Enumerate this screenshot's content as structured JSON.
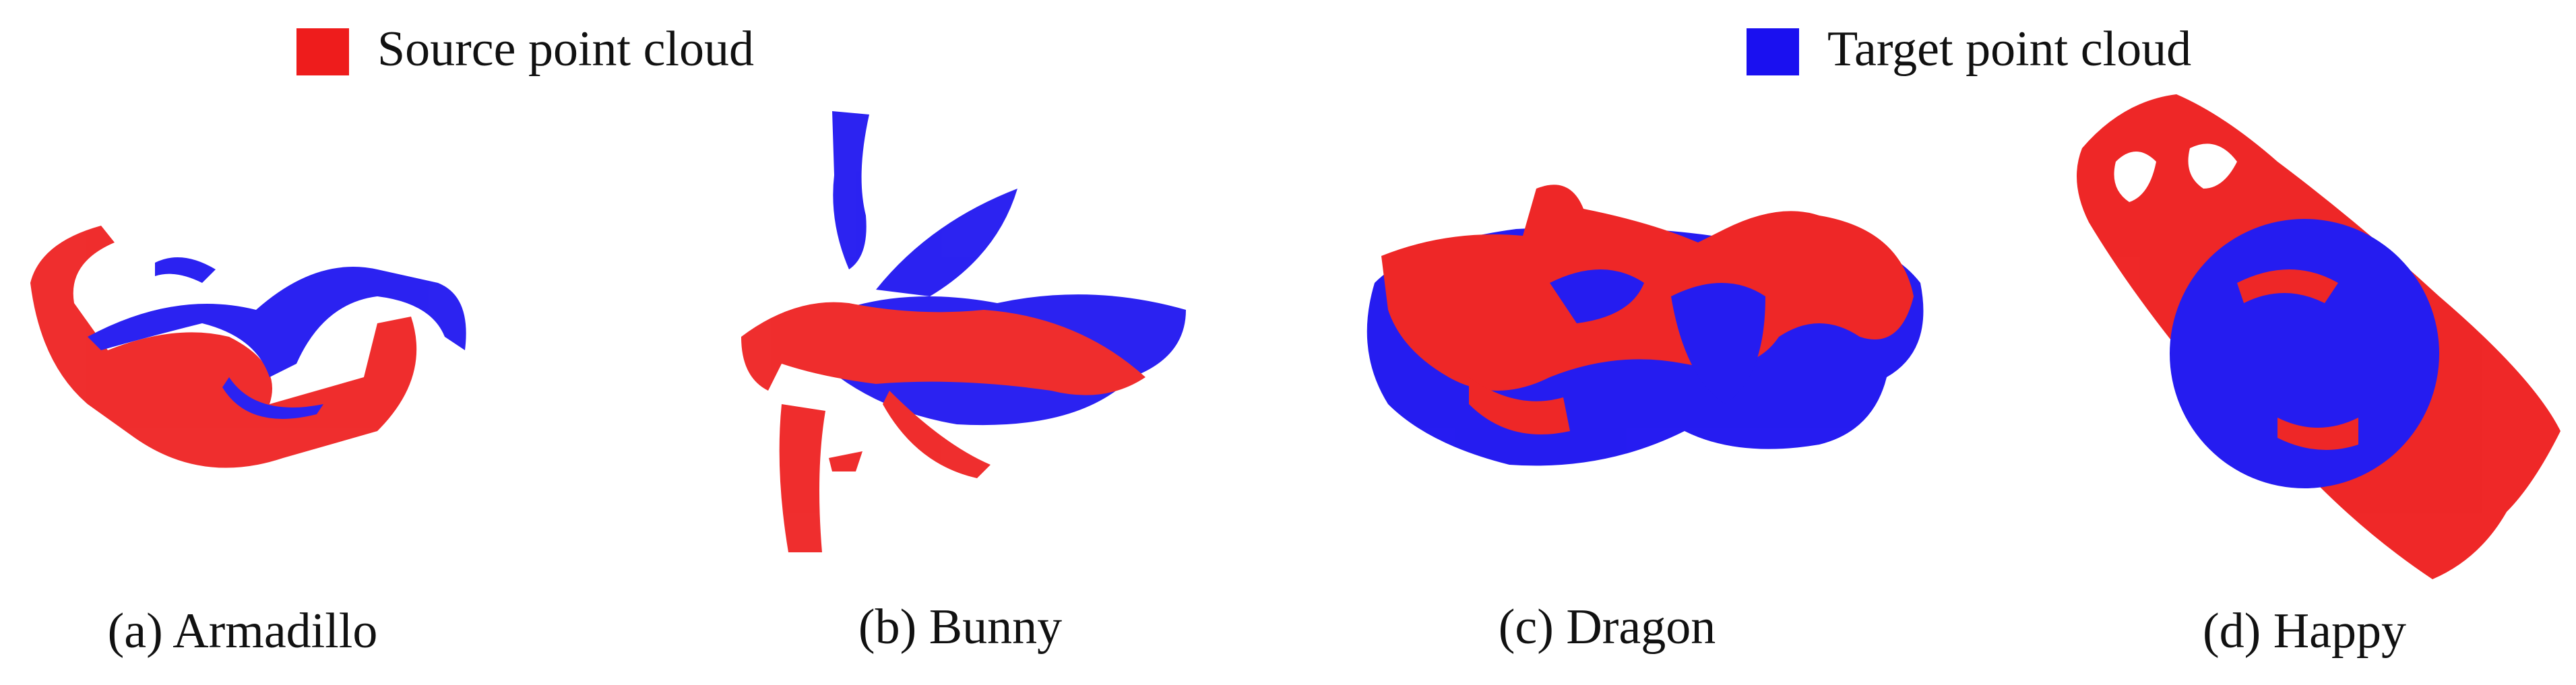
{
  "legend": [
    {
      "label": "Source point cloud"
    },
    {
      "label": "Target point cloud"
    }
  ],
  "panels": [
    {
      "caption": "(a) Armadillo"
    },
    {
      "caption": "(b) Bunny"
    },
    {
      "caption": "(c) Dragon"
    },
    {
      "caption": "(d) Happy"
    }
  ]
}
